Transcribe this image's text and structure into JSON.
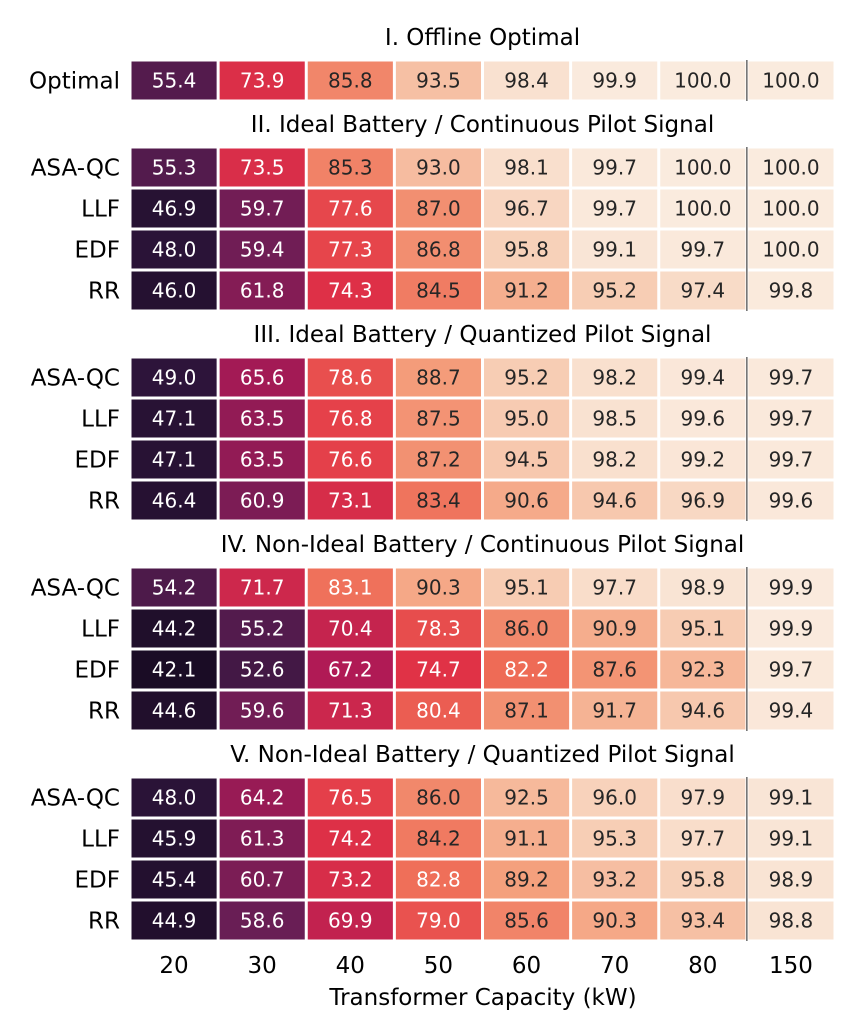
{
  "chart_data": {
    "type": "heatmap",
    "xlabel": "Transformer Capacity (kW)",
    "x": [
      20,
      30,
      40,
      50,
      60,
      70,
      80,
      150
    ],
    "colormap": "rocket",
    "color_range": [
      40,
      100
    ],
    "panels": [
      {
        "title": "I. Offline Optimal",
        "rows": [
          {
            "label": "Optimal",
            "values": [
              55.4,
              73.9,
              85.8,
              93.5,
              98.4,
              99.9,
              100.0,
              100.0
            ]
          }
        ]
      },
      {
        "title": "II. Ideal Battery / Continuous Pilot Signal",
        "rows": [
          {
            "label": "ASA-QC",
            "values": [
              55.3,
              73.5,
              85.3,
              93.0,
              98.1,
              99.7,
              100.0,
              100.0
            ]
          },
          {
            "label": "LLF",
            "values": [
              46.9,
              59.7,
              77.6,
              87.0,
              96.7,
              99.7,
              100.0,
              100.0
            ]
          },
          {
            "label": "EDF",
            "values": [
              48.0,
              59.4,
              77.3,
              86.8,
              95.8,
              99.1,
              99.7,
              100.0
            ]
          },
          {
            "label": "RR",
            "values": [
              46.0,
              61.8,
              74.3,
              84.5,
              91.2,
              95.2,
              97.4,
              99.8
            ]
          }
        ]
      },
      {
        "title": "III. Ideal Battery / Quantized Pilot Signal",
        "rows": [
          {
            "label": "ASA-QC",
            "values": [
              49.0,
              65.6,
              78.6,
              88.7,
              95.2,
              98.2,
              99.4,
              99.7
            ]
          },
          {
            "label": "LLF",
            "values": [
              47.1,
              63.5,
              76.8,
              87.5,
              95.0,
              98.5,
              99.6,
              99.7
            ]
          },
          {
            "label": "EDF",
            "values": [
              47.1,
              63.5,
              76.6,
              87.2,
              94.5,
              98.2,
              99.2,
              99.7
            ]
          },
          {
            "label": "RR",
            "values": [
              46.4,
              60.9,
              73.1,
              83.4,
              90.6,
              94.6,
              96.9,
              99.6
            ]
          }
        ]
      },
      {
        "title": "IV. Non-Ideal Battery / Continuous Pilot Signal",
        "rows": [
          {
            "label": "ASA-QC",
            "values": [
              54.2,
              71.7,
              83.1,
              90.3,
              95.1,
              97.7,
              98.9,
              99.9
            ]
          },
          {
            "label": "LLF",
            "values": [
              44.2,
              55.2,
              70.4,
              78.3,
              86.0,
              90.9,
              95.1,
              99.9
            ]
          },
          {
            "label": "EDF",
            "values": [
              42.1,
              52.6,
              67.2,
              74.7,
              82.2,
              87.6,
              92.3,
              99.7
            ]
          },
          {
            "label": "RR",
            "values": [
              44.6,
              59.6,
              71.3,
              80.4,
              87.1,
              91.7,
              94.6,
              99.4
            ]
          }
        ]
      },
      {
        "title": "V. Non-Ideal Battery / Quantized Pilot Signal",
        "rows": [
          {
            "label": "ASA-QC",
            "values": [
              48.0,
              64.2,
              76.5,
              86.0,
              92.5,
              96.0,
              97.9,
              99.1
            ]
          },
          {
            "label": "LLF",
            "values": [
              45.9,
              61.3,
              74.2,
              84.2,
              91.1,
              95.3,
              97.7,
              99.1
            ]
          },
          {
            "label": "EDF",
            "values": [
              45.4,
              60.7,
              73.2,
              82.8,
              89.2,
              93.2,
              95.8,
              98.9
            ]
          },
          {
            "label": "RR",
            "values": [
              44.9,
              58.6,
              69.9,
              79.0,
              85.6,
              90.3,
              93.4,
              98.8
            ]
          }
        ]
      }
    ]
  }
}
